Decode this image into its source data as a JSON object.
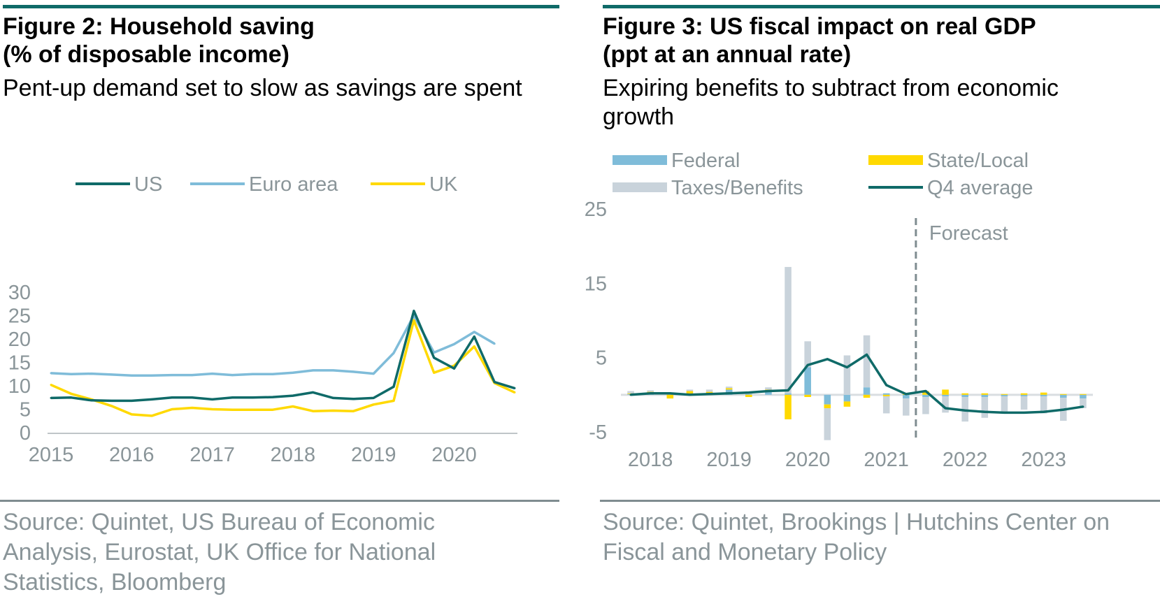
{
  "figure2": {
    "title": "Figure 2: Household saving\n(% of disposable income)",
    "subtitle": "Pent-up demand set to slow as savings are spent",
    "source": "Source: Quintet, US Bureau of Economic Analysis, Eurostat, UK Office for National Statistics, Bloomberg"
  },
  "figure3": {
    "title": "Figure 3: US fiscal impact on real GDP\n(ppt at an annual rate)",
    "subtitle": "Expiring benefits to subtract from economic growth",
    "source": "Source: Quintet, Brookings | Hutchins Center on Fiscal and Monetary Policy",
    "forecast_label": "Forecast"
  },
  "chart_data": [
    {
      "type": "line",
      "ylim": [
        0,
        30
      ],
      "yticks": [
        0,
        5,
        10,
        15,
        20,
        25,
        30
      ],
      "x_tick_labels": [
        "2015",
        "2016",
        "2017",
        "2018",
        "2019",
        "2020"
      ],
      "x_start_year": 2015,
      "legend_position": "top",
      "series": [
        {
          "name": "US",
          "color": "#0f6a68",
          "values": [
            7.4,
            7.5,
            6.9,
            6.8,
            6.8,
            7.1,
            7.5,
            7.5,
            7.1,
            7.5,
            7.5,
            7.6,
            7.9,
            8.6,
            7.4,
            7.2,
            7.4,
            9.8,
            26.0,
            16.0,
            13.7,
            20.5,
            10.8,
            9.5
          ]
        },
        {
          "name": "Euro area",
          "color": "#7fbcd9",
          "values": [
            12.7,
            12.5,
            12.6,
            12.4,
            12.2,
            12.2,
            12.3,
            12.3,
            12.6,
            12.3,
            12.5,
            12.5,
            12.8,
            13.3,
            13.3,
            13.0,
            12.6,
            17.0,
            25.0,
            17.1,
            18.9,
            21.5,
            19.0,
            null
          ]
        },
        {
          "name": "UK",
          "color": "#ffd900",
          "values": [
            10.2,
            8.3,
            7.1,
            5.7,
            3.9,
            3.6,
            5.0,
            5.3,
            5.0,
            4.9,
            4.9,
            4.9,
            5.6,
            4.6,
            4.7,
            4.6,
            6.0,
            6.8,
            24.0,
            12.8,
            14.3,
            18.4,
            10.6,
            8.6
          ]
        }
      ]
    },
    {
      "type": "bar",
      "ylim": [
        -5,
        25
      ],
      "yticks": [
        -5,
        5,
        15,
        25
      ],
      "x_tick_labels": [
        "2018",
        "2019",
        "2020",
        "2021",
        "2022",
        "2023"
      ],
      "forecast_start": "2021 Q4",
      "legend_position": "top",
      "quarters": [
        "2018 Q1",
        "2018 Q2",
        "2018 Q3",
        "2018 Q4",
        "2019 Q1",
        "2019 Q2",
        "2019 Q3",
        "2019 Q4",
        "2020 Q1",
        "2020 Q2",
        "2020 Q3",
        "2020 Q4",
        "2021 Q1",
        "2021 Q2",
        "2021 Q3",
        "2021 Q4",
        "2022 Q1",
        "2022 Q2",
        "2022 Q3",
        "2022 Q4",
        "2023 Q1",
        "2023 Q2",
        "2023 Q3",
        "2023 Q4"
      ],
      "series": [
        {
          "name": "Federal",
          "kind": "bar",
          "color": "#7fbcd9",
          "values": [
            0.1,
            0.2,
            0.1,
            0.1,
            0.2,
            0.7,
            0.1,
            0.4,
            0.2,
            3.7,
            -1.3,
            -0.9,
            1.0,
            0.2,
            -0.5,
            -0.3,
            -0.2,
            -0.3,
            -0.3,
            -0.2,
            -0.2,
            -0.2,
            -0.4,
            -0.5
          ]
        },
        {
          "name": "State/Local",
          "kind": "bar",
          "color": "#ffd900",
          "values": [
            0.1,
            0.2,
            -0.5,
            0.4,
            0.2,
            0.2,
            -0.3,
            0.3,
            -3.3,
            -0.3,
            -0.5,
            -0.7,
            -0.4,
            -0.2,
            0.2,
            0.5,
            0.7,
            0.2,
            0.2,
            0.1,
            0.2,
            0.3,
            0.1,
            0.1
          ]
        },
        {
          "name": "Taxes/Benefits",
          "kind": "bar",
          "color": "#c9d3db",
          "values": [
            0.3,
            0.2,
            0.1,
            0.2,
            0.3,
            0.2,
            0.2,
            0.3,
            17.0,
            3.5,
            -4.3,
            5.3,
            7.0,
            -2.3,
            -2.3,
            -2.3,
            -2.2,
            -3.3,
            -2.8,
            -2.3,
            -1.8,
            -2.3,
            -3.1,
            -1.3
          ]
        },
        {
          "name": "Q4 average",
          "kind": "line",
          "color": "#0f6a68",
          "values": [
            0.0,
            0.2,
            0.2,
            0.0,
            0.1,
            0.2,
            0.3,
            0.5,
            0.6,
            4.0,
            4.8,
            3.7,
            5.4,
            1.3,
            0.1,
            0.5,
            -1.8,
            -2.1,
            -2.3,
            -2.4,
            -2.4,
            -2.3,
            -2.0,
            -1.6
          ]
        }
      ]
    }
  ]
}
